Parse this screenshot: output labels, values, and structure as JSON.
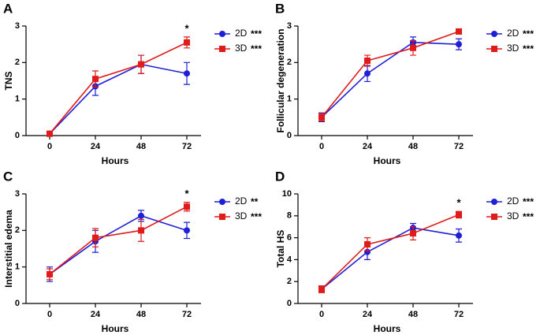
{
  "chart_data": [
    {
      "type": "line",
      "panel_label": "A",
      "y_label": "TNS",
      "x_label": "Hours",
      "categories": [
        "0",
        "24",
        "48",
        "72"
      ],
      "ylim": [
        0,
        3
      ],
      "yticks": [
        0,
        1,
        2,
        3
      ],
      "series": [
        {
          "name": "2D",
          "significance": "***",
          "color": "#1f1fd6",
          "marker": "circle",
          "values": [
            0.05,
            1.35,
            1.95,
            1.7
          ],
          "errors": [
            0.03,
            0.25,
            0.25,
            0.3
          ]
        },
        {
          "name": "3D",
          "significance": "***",
          "color": "#e01b1b",
          "marker": "square",
          "values": [
            0.05,
            1.55,
            1.95,
            2.55
          ],
          "errors": [
            0.03,
            0.22,
            0.25,
            0.15
          ]
        }
      ],
      "annotations": [
        {
          "x": "72",
          "text": "*"
        }
      ]
    },
    {
      "type": "line",
      "panel_label": "B",
      "y_label": "Follicular degeneration",
      "x_label": "Hours",
      "categories": [
        "0",
        "24",
        "48",
        "72"
      ],
      "ylim": [
        0,
        3
      ],
      "yticks": [
        0,
        1,
        2,
        3
      ],
      "series": [
        {
          "name": "2D",
          "significance": "***",
          "color": "#1f1fd6",
          "marker": "circle",
          "values": [
            0.5,
            1.7,
            2.55,
            2.5
          ],
          "errors": [
            0.12,
            0.22,
            0.15,
            0.15
          ]
        },
        {
          "name": "3D",
          "significance": "***",
          "color": "#e01b1b",
          "marker": "square",
          "values": [
            0.5,
            2.05,
            2.4,
            2.85
          ],
          "errors": [
            0.1,
            0.15,
            0.2,
            0.07
          ]
        }
      ],
      "annotations": []
    },
    {
      "type": "line",
      "panel_label": "C",
      "y_label": "Interstitial edema",
      "x_label": "Hours",
      "categories": [
        "0",
        "24",
        "48",
        "72"
      ],
      "ylim": [
        0,
        3
      ],
      "yticks": [
        0,
        1,
        2,
        3
      ],
      "series": [
        {
          "name": "2D",
          "significance": "**",
          "color": "#1f1fd6",
          "marker": "circle",
          "values": [
            0.8,
            1.7,
            2.4,
            2.0
          ],
          "errors": [
            0.2,
            0.3,
            0.15,
            0.22
          ]
        },
        {
          "name": "3D",
          "significance": "***",
          "color": "#e01b1b",
          "marker": "square",
          "values": [
            0.8,
            1.8,
            2.0,
            2.65
          ],
          "errors": [
            0.15,
            0.25,
            0.3,
            0.12
          ]
        }
      ],
      "annotations": [
        {
          "x": "72",
          "text": "*"
        }
      ]
    },
    {
      "type": "line",
      "panel_label": "D",
      "y_label": "Total HS",
      "x_label": "Hours",
      "categories": [
        "0",
        "24",
        "48",
        "72"
      ],
      "ylim": [
        0,
        10
      ],
      "yticks": [
        0,
        2,
        4,
        6,
        8,
        10
      ],
      "series": [
        {
          "name": "2D",
          "significance": "***",
          "color": "#1f1fd6",
          "marker": "circle",
          "values": [
            1.3,
            4.7,
            6.9,
            6.2
          ],
          "errors": [
            0.3,
            0.7,
            0.4,
            0.6
          ]
        },
        {
          "name": "3D",
          "significance": "***",
          "color": "#e01b1b",
          "marker": "square",
          "values": [
            1.3,
            5.4,
            6.4,
            8.1
          ],
          "errors": [
            0.3,
            0.6,
            0.6,
            0.3
          ]
        }
      ],
      "annotations": [
        {
          "x": "72",
          "text": "*"
        }
      ]
    }
  ]
}
